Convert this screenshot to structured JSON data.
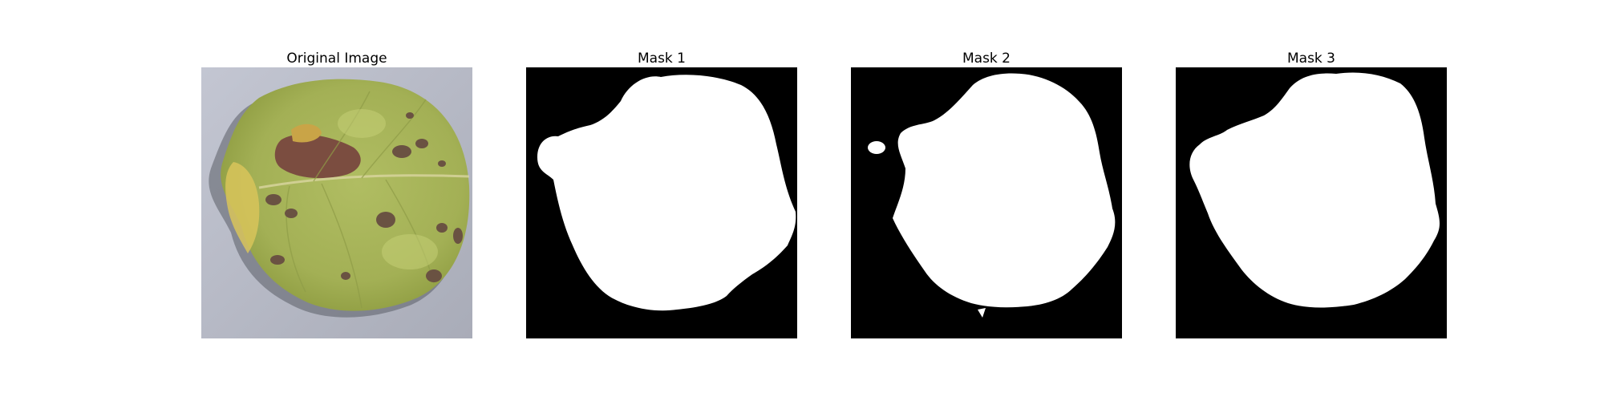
{
  "panels": [
    {
      "title": "Original Image"
    },
    {
      "title": "Mask 1"
    },
    {
      "title": "Mask 2"
    },
    {
      "title": "Mask 3"
    }
  ],
  "colors": {
    "background": "#ffffff",
    "mask_bg": "#000000",
    "mask_fg": "#ffffff",
    "photo_bg": "#b9bcc8",
    "leaf": "#a9b65a",
    "leaf_dark": "#8c9a3e",
    "lesion": "#7a4a3e",
    "spot": "#6d5a4a"
  }
}
